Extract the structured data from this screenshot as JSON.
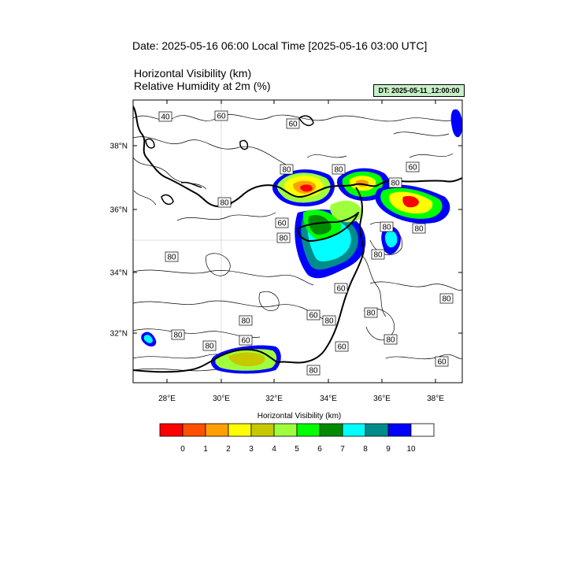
{
  "header": {
    "date_line": "Date: 2025-05-16  06:00 Local Time [2025-05-16  03:00 UTC]",
    "var1": "Horizontal Visibility   (km)",
    "var2": "Relative Humidity at 2m   (%)",
    "dt_badge": "DT: 2025-05-11_12:00:00"
  },
  "map": {
    "lon_labels": [
      "28°E",
      "30°E",
      "32°E",
      "34°E",
      "36°E",
      "38°E"
    ],
    "lat_labels": [
      "38°N",
      "36°N",
      "34°N",
      "32°N"
    ],
    "contour_labels": [
      "40",
      "60",
      "60",
      "80",
      "80",
      "60",
      "80",
      "80",
      "60",
      "80",
      "80",
      "80",
      "80",
      "60",
      "80",
      "80",
      "80",
      "80",
      "80",
      "60",
      "80",
      "60",
      "80",
      "60",
      "80",
      "80",
      "60"
    ]
  },
  "colorbar": {
    "title": "Horizontal Visibility  (km)",
    "colors": [
      "#ff0000",
      "#ff5000",
      "#ffa000",
      "#ffff00",
      "#c8c800",
      "#a0ff3c",
      "#00ff00",
      "#008c00",
      "#00ffff",
      "#008c8c",
      "#0000ff",
      "#ffffff"
    ],
    "tick_labels": [
      "0",
      "1",
      "2",
      "3",
      "4",
      "5",
      "6",
      "7",
      "8",
      "9",
      "10"
    ]
  }
}
